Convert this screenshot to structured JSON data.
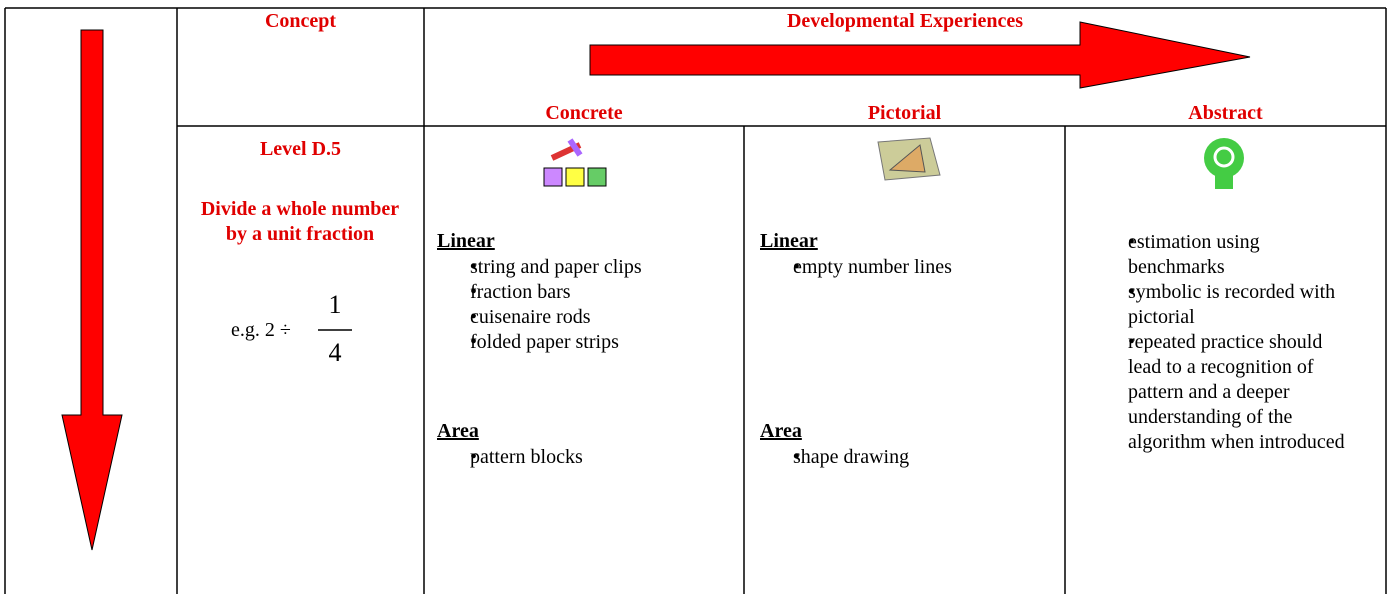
{
  "header": {
    "concept": "Concept",
    "developmental": "Developmental Experiences",
    "concrete": "Concrete",
    "pictorial": "Pictorial",
    "abstract": "Abstract"
  },
  "concept": {
    "level": "Level D.5",
    "description": "Divide a whole number by a unit fraction",
    "example_prefix": "e.g. 2 ÷",
    "numerator": "1",
    "denominator": "4"
  },
  "concrete": {
    "sections": [
      {
        "heading": "Linear",
        "items": [
          "string and paper clips",
          "fraction bars",
          "cuisenaire rods",
          "folded paper strips"
        ]
      },
      {
        "heading": "Area",
        "items": [
          "pattern blocks"
        ]
      }
    ]
  },
  "pictorial": {
    "sections": [
      {
        "heading": "Linear",
        "items": [
          "empty number lines"
        ]
      },
      {
        "heading": "Area",
        "items": [
          "shape drawing"
        ]
      }
    ]
  },
  "abstract": {
    "items": [
      "estimation using benchmarks",
      "symbolic is recorded with pictorial",
      "repeated practice should lead to a recognition of pattern and a deeper understanding of the algorithm when introduced"
    ]
  }
}
